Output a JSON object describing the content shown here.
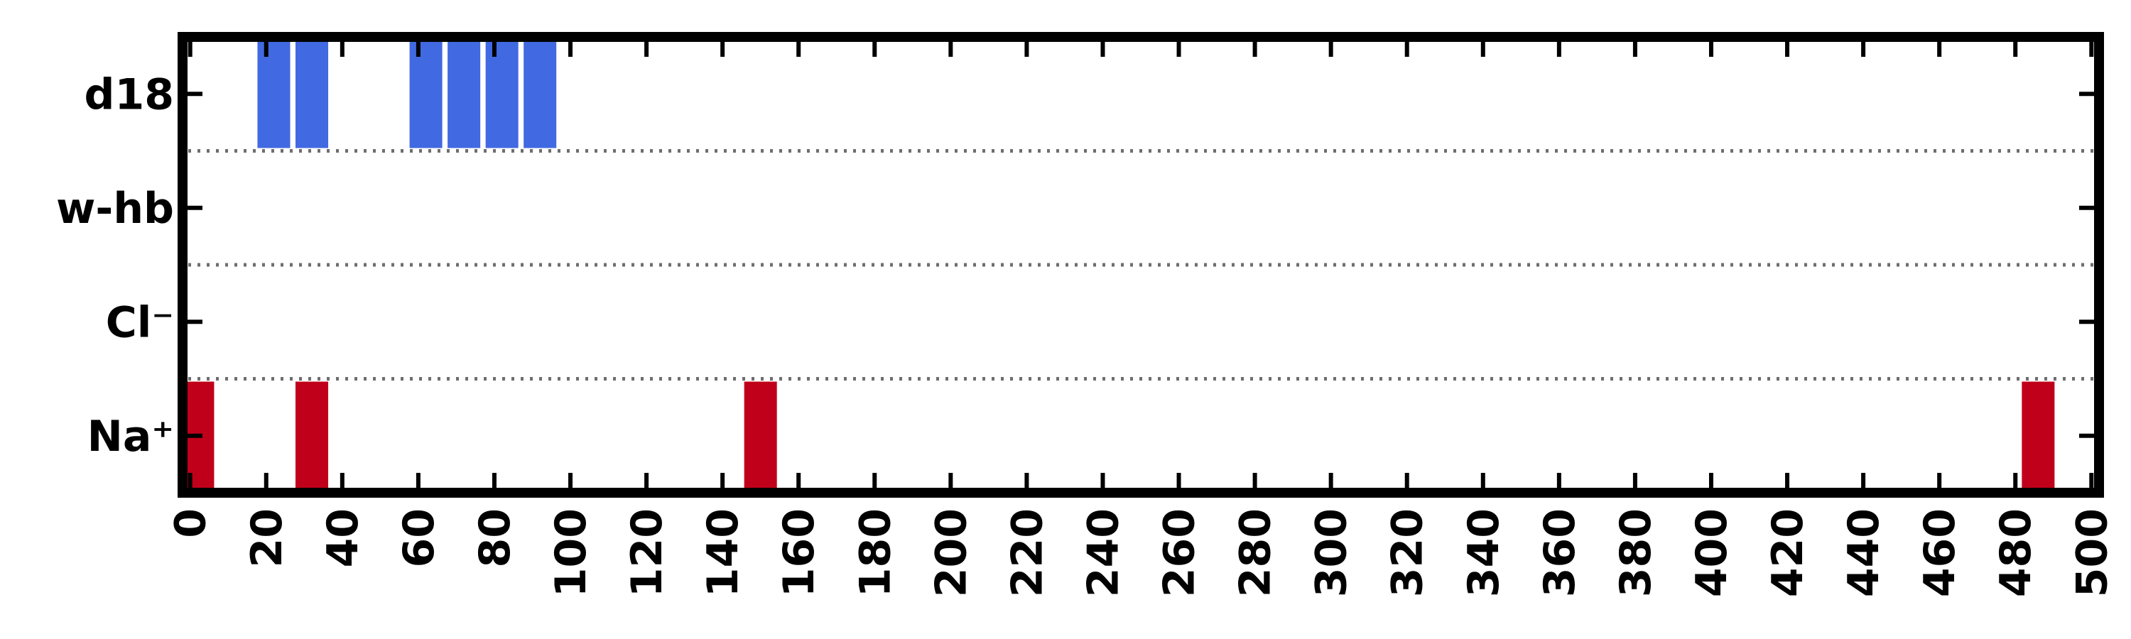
{
  "chart_data": {
    "type": "bar",
    "title": "",
    "xlabel": "",
    "ylabel": "",
    "xlim": [
      -2,
      502
    ],
    "rows": [
      "d18",
      "w-hb",
      "Cl⁻",
      "Na⁺"
    ],
    "grid": "dotted separators between rows",
    "xticks": [
      0,
      20,
      40,
      60,
      80,
      100,
      120,
      140,
      160,
      180,
      200,
      220,
      240,
      260,
      280,
      300,
      320,
      340,
      360,
      380,
      400,
      420,
      440,
      460,
      480,
      500
    ],
    "bar_width": 8.6,
    "series": [
      {
        "row": "d18",
        "color": "#4169e1",
        "x": [
          22,
          32,
          62,
          72,
          82,
          92
        ]
      },
      {
        "row": "w-hb",
        "color": "#4169e1",
        "x": []
      },
      {
        "row": "Cl⁻",
        "color": "#c0001a",
        "x": []
      },
      {
        "row": "Na⁺",
        "color": "#c0001a",
        "x": [
          2,
          32,
          150,
          486
        ]
      }
    ]
  }
}
